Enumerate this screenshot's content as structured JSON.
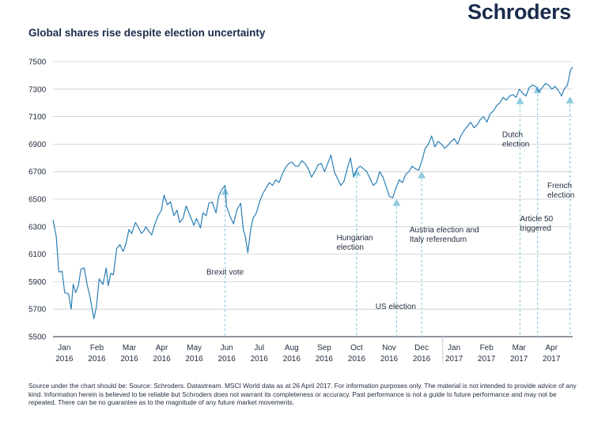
{
  "brand": "Schroders",
  "title": "Global shares rise despite election uncertainty",
  "footer": "Source under the chart should be: Source: Schroders. Datastream. MSCI World data as at 26 April 2017. For information purposes only. The material is not intended to provide advice of any kind. Information herein is believed to be reliable but Schroders does not warrant its completeness or accuracy. Past performance is not a guide to future performance and may not be repeated. There can be no guarantee as to the magnitude of any future market movements.",
  "colors": {
    "line": "#2a7fb5",
    "marker": "#8ecbdc",
    "grid": "#c9ccd1",
    "axis": "#1f2b3d"
  },
  "chart_data": {
    "type": "line",
    "ylim": [
      5500,
      7500
    ],
    "yticks": [
      5500,
      5700,
      5900,
      6100,
      6300,
      6500,
      6700,
      6900,
      7100,
      7300,
      7500
    ],
    "xlim": [
      0,
      16
    ],
    "grid": true,
    "x_ticks": [
      {
        "pos": 0.35,
        "month": "Jan",
        "year": "2016"
      },
      {
        "pos": 1.35,
        "month": "Feb",
        "year": "2016"
      },
      {
        "pos": 2.35,
        "month": "Mar",
        "year": "2016"
      },
      {
        "pos": 3.35,
        "month": "Apr",
        "year": "2016"
      },
      {
        "pos": 4.35,
        "month": "May",
        "year": "2016"
      },
      {
        "pos": 5.35,
        "month": "Jun",
        "year": "2016"
      },
      {
        "pos": 6.35,
        "month": "Jul",
        "year": "2016"
      },
      {
        "pos": 7.35,
        "month": "Aug",
        "year": "2016"
      },
      {
        "pos": 8.35,
        "month": "Sep",
        "year": "2016"
      },
      {
        "pos": 9.35,
        "month": "Oct",
        "year": "2016"
      },
      {
        "pos": 10.35,
        "month": "Nov",
        "year": "2016"
      },
      {
        "pos": 11.35,
        "month": "Dec",
        "year": "2016"
      },
      {
        "pos": 12.35,
        "month": "Jan",
        "year": "2017"
      },
      {
        "pos": 13.35,
        "month": "Feb",
        "year": "2017"
      },
      {
        "pos": 14.35,
        "month": "Mar",
        "year": "2017"
      },
      {
        "pos": 15.35,
        "month": "Apr",
        "year": "2017"
      }
    ],
    "series": [
      {
        "points": [
          [
            0.0,
            6350
          ],
          [
            0.1,
            6230
          ],
          [
            0.18,
            5970
          ],
          [
            0.28,
            5975
          ],
          [
            0.36,
            5820
          ],
          [
            0.48,
            5810
          ],
          [
            0.56,
            5700
          ],
          [
            0.62,
            5880
          ],
          [
            0.7,
            5820
          ],
          [
            0.78,
            5870
          ],
          [
            0.86,
            5990
          ],
          [
            0.96,
            6000
          ],
          [
            1.05,
            5880
          ],
          [
            1.14,
            5790
          ],
          [
            1.26,
            5630
          ],
          [
            1.34,
            5720
          ],
          [
            1.42,
            5920
          ],
          [
            1.54,
            5880
          ],
          [
            1.64,
            6000
          ],
          [
            1.7,
            5870
          ],
          [
            1.78,
            5960
          ],
          [
            1.86,
            5950
          ],
          [
            1.96,
            6140
          ],
          [
            2.06,
            6170
          ],
          [
            2.16,
            6120
          ],
          [
            2.24,
            6170
          ],
          [
            2.34,
            6280
          ],
          [
            2.42,
            6250
          ],
          [
            2.54,
            6330
          ],
          [
            2.64,
            6290
          ],
          [
            2.72,
            6250
          ],
          [
            2.8,
            6270
          ],
          [
            2.86,
            6300
          ],
          [
            2.94,
            6270
          ],
          [
            3.04,
            6240
          ],
          [
            3.14,
            6320
          ],
          [
            3.24,
            6380
          ],
          [
            3.34,
            6420
          ],
          [
            3.42,
            6530
          ],
          [
            3.52,
            6460
          ],
          [
            3.62,
            6480
          ],
          [
            3.72,
            6380
          ],
          [
            3.82,
            6420
          ],
          [
            3.9,
            6330
          ],
          [
            4.0,
            6360
          ],
          [
            4.1,
            6450
          ],
          [
            4.22,
            6380
          ],
          [
            4.34,
            6310
          ],
          [
            4.42,
            6360
          ],
          [
            4.54,
            6290
          ],
          [
            4.62,
            6400
          ],
          [
            4.72,
            6380
          ],
          [
            4.8,
            6470
          ],
          [
            4.9,
            6480
          ],
          [
            5.02,
            6400
          ],
          [
            5.1,
            6520
          ],
          [
            5.2,
            6570
          ],
          [
            5.3,
            6600
          ],
          [
            5.34,
            6450
          ],
          [
            5.46,
            6370
          ],
          [
            5.56,
            6320
          ],
          [
            5.66,
            6420
          ],
          [
            5.78,
            6470
          ],
          [
            5.86,
            6280
          ],
          [
            5.92,
            6230
          ],
          [
            6.0,
            6110
          ],
          [
            6.08,
            6270
          ],
          [
            6.16,
            6360
          ],
          [
            6.26,
            6400
          ],
          [
            6.36,
            6480
          ],
          [
            6.46,
            6540
          ],
          [
            6.56,
            6580
          ],
          [
            6.66,
            6620
          ],
          [
            6.76,
            6600
          ],
          [
            6.86,
            6640
          ],
          [
            6.96,
            6620
          ],
          [
            7.06,
            6680
          ],
          [
            7.16,
            6730
          ],
          [
            7.26,
            6760
          ],
          [
            7.36,
            6770
          ],
          [
            7.46,
            6740
          ],
          [
            7.56,
            6740
          ],
          [
            7.66,
            6780
          ],
          [
            7.76,
            6760
          ],
          [
            7.86,
            6720
          ],
          [
            7.96,
            6660
          ],
          [
            8.06,
            6700
          ],
          [
            8.16,
            6750
          ],
          [
            8.26,
            6760
          ],
          [
            8.36,
            6700
          ],
          [
            8.46,
            6760
          ],
          [
            8.56,
            6820
          ],
          [
            8.66,
            6700
          ],
          [
            8.76,
            6650
          ],
          [
            8.86,
            6600
          ],
          [
            8.96,
            6630
          ],
          [
            9.06,
            6720
          ],
          [
            9.16,
            6800
          ],
          [
            9.26,
            6660
          ],
          [
            9.36,
            6720
          ],
          [
            9.46,
            6740
          ],
          [
            9.56,
            6720
          ],
          [
            9.66,
            6700
          ],
          [
            9.76,
            6650
          ],
          [
            9.86,
            6600
          ],
          [
            9.96,
            6620
          ],
          [
            10.06,
            6700
          ],
          [
            10.16,
            6660
          ],
          [
            10.26,
            6590
          ],
          [
            10.36,
            6520
          ],
          [
            10.46,
            6510
          ],
          [
            10.56,
            6580
          ],
          [
            10.66,
            6640
          ],
          [
            10.76,
            6620
          ],
          [
            10.86,
            6680
          ],
          [
            10.96,
            6700
          ],
          [
            11.06,
            6740
          ],
          [
            11.16,
            6720
          ],
          [
            11.26,
            6710
          ],
          [
            11.36,
            6780
          ],
          [
            11.46,
            6870
          ],
          [
            11.56,
            6900
          ],
          [
            11.66,
            6960
          ],
          [
            11.76,
            6880
          ],
          [
            11.86,
            6920
          ],
          [
            11.96,
            6900
          ],
          [
            12.06,
            6870
          ],
          [
            12.16,
            6890
          ],
          [
            12.26,
            6920
          ],
          [
            12.36,
            6940
          ],
          [
            12.46,
            6900
          ],
          [
            12.56,
            6960
          ],
          [
            12.66,
            7000
          ],
          [
            12.76,
            7030
          ],
          [
            12.86,
            7060
          ],
          [
            12.96,
            7020
          ],
          [
            13.06,
            7040
          ],
          [
            13.16,
            7080
          ],
          [
            13.26,
            7100
          ],
          [
            13.36,
            7060
          ],
          [
            13.46,
            7120
          ],
          [
            13.56,
            7140
          ],
          [
            13.66,
            7180
          ],
          [
            13.76,
            7200
          ],
          [
            13.86,
            7240
          ],
          [
            13.96,
            7220
          ],
          [
            14.06,
            7250
          ],
          [
            14.16,
            7260
          ],
          [
            14.26,
            7240
          ],
          [
            14.36,
            7300
          ],
          [
            14.46,
            7270
          ],
          [
            14.56,
            7250
          ],
          [
            14.66,
            7310
          ],
          [
            14.76,
            7330
          ],
          [
            14.86,
            7320
          ],
          [
            14.96,
            7280
          ],
          [
            15.06,
            7310
          ],
          [
            15.16,
            7340
          ],
          [
            15.26,
            7330
          ],
          [
            15.36,
            7300
          ],
          [
            15.46,
            7320
          ],
          [
            15.56,
            7290
          ],
          [
            15.66,
            7250
          ],
          [
            15.74,
            7300
          ],
          [
            15.84,
            7330
          ],
          [
            15.94,
            7440
          ],
          [
            16.0,
            7460
          ]
        ]
      }
    ],
    "events": [
      {
        "name": "Brexit vote",
        "x": 5.3,
        "lines": [
          "Brexit vote"
        ],
        "lx": 5.3,
        "ly": 5950,
        "anchor": "middle",
        "marker_y": 6560
      },
      {
        "name": "Hungarian election",
        "x": 9.35,
        "lines": [
          "Hungarian",
          "election"
        ],
        "lx": 8.73,
        "ly": 6200,
        "anchor": "start",
        "marker_y": 6700
      },
      {
        "name": "US election",
        "x": 10.58,
        "lines": [
          "US election"
        ],
        "lx": 9.93,
        "ly": 5700,
        "anchor": "start",
        "marker_y": 6480
      },
      {
        "name": "Austria election and Italy referendum",
        "x": 11.35,
        "lines": [
          "Austria election and",
          "Italy referendum"
        ],
        "lx": 10.98,
        "ly": 6260,
        "anchor": "start",
        "marker_y": 6680
      },
      {
        "name": "Dutch election",
        "x": 14.38,
        "lines": [
          "Dutch",
          "election"
        ],
        "lx": 13.83,
        "ly": 6950,
        "anchor": "start",
        "marker_y": 7220
      },
      {
        "name": "Article 50 triggered",
        "x": 14.92,
        "lines": [
          "Article 50",
          "triggered"
        ],
        "lx": 14.38,
        "ly": 6340,
        "anchor": "start",
        "marker_y": 7300
      },
      {
        "name": "French election",
        "x": 15.92,
        "lines": [
          "French",
          "election"
        ],
        "lx": 15.22,
        "ly": 6580,
        "anchor": "start",
        "marker_y": 7225
      }
    ]
  }
}
